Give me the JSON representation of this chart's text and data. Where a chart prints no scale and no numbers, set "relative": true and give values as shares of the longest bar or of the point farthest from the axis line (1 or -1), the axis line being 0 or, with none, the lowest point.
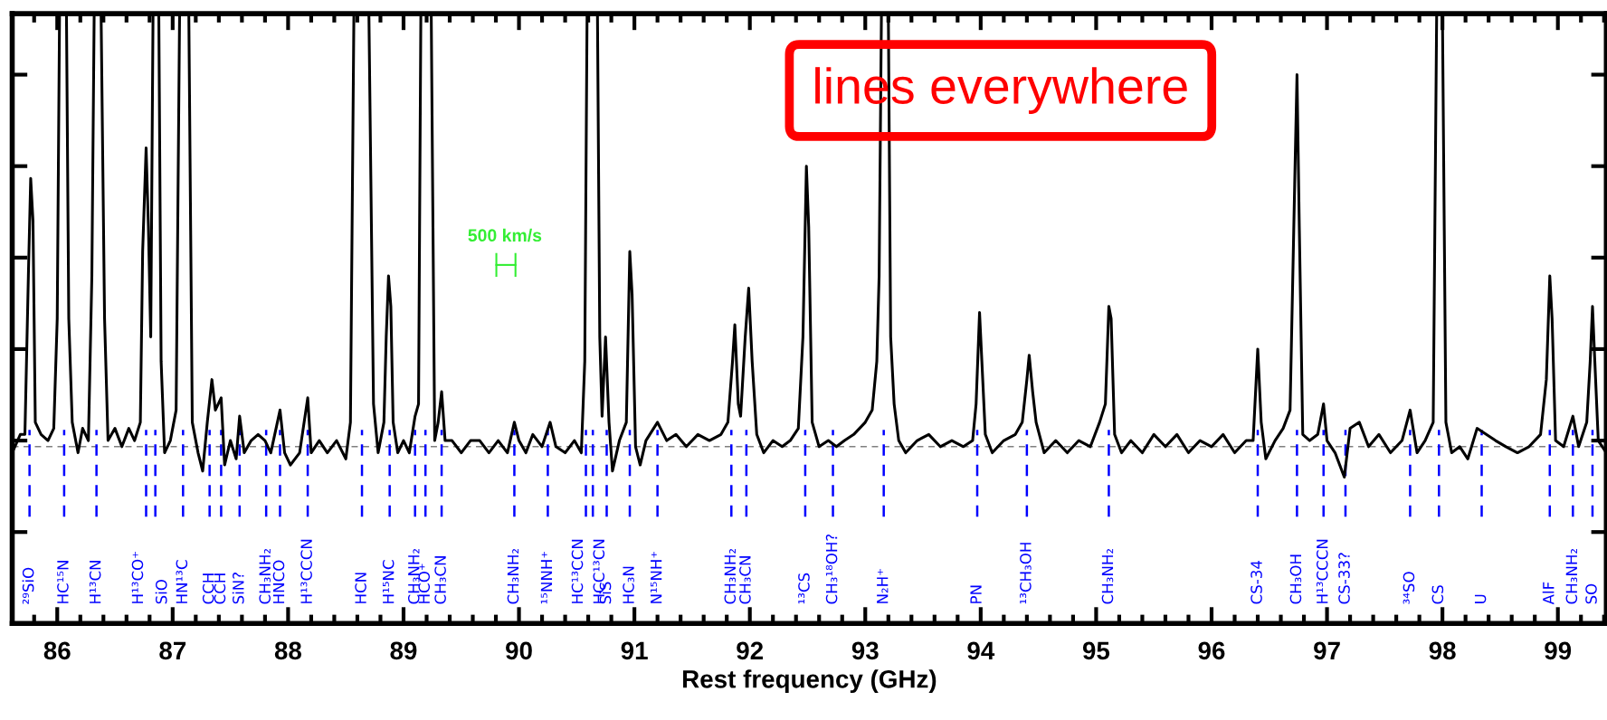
{
  "chart_data": {
    "type": "line",
    "relative": true,
    "xlabel": "Rest frequency (GHz)",
    "xlim": [
      85.61,
      99.42
    ],
    "xticks": [
      86,
      87,
      88,
      89,
      90,
      91,
      92,
      93,
      94,
      95,
      96,
      97,
      98,
      99
    ],
    "grid": false,
    "legend": false,
    "tick_labels": "x",
    "annotations": [
      "lines everywhere",
      "500 km/s"
    ],
    "series": [
      {
        "color": "#000000",
        "x": [
          85.61,
          85.68,
          85.72,
          85.75,
          85.77,
          85.79,
          85.81,
          85.86,
          85.92,
          85.97,
          86.0,
          86.02,
          86.08,
          86.1,
          86.13,
          86.18,
          86.22,
          86.27,
          86.3,
          86.32,
          86.38,
          86.41,
          86.44,
          86.5,
          86.56,
          86.62,
          86.67,
          86.72,
          86.74,
          86.77,
          86.79,
          86.81,
          86.83,
          86.88,
          86.9,
          86.93,
          86.98,
          87.03,
          87.06,
          87.14,
          87.17,
          87.22,
          87.26,
          87.3,
          87.34,
          87.37,
          87.42,
          87.45,
          87.5,
          87.55,
          87.58,
          87.62,
          87.68,
          87.74,
          87.8,
          87.85,
          87.93,
          87.97,
          88.02,
          88.1,
          88.17,
          88.2,
          88.27,
          88.34,
          88.42,
          88.5,
          88.54,
          88.57,
          88.7,
          88.74,
          88.78,
          88.83,
          88.85,
          88.87,
          88.89,
          88.91,
          88.95,
          89.0,
          89.05,
          89.1,
          89.13,
          89.15,
          89.24,
          89.27,
          89.3,
          89.33,
          89.36,
          89.42,
          89.5,
          89.58,
          89.66,
          89.74,
          89.82,
          89.9,
          89.96,
          90.0,
          90.06,
          90.12,
          90.2,
          90.27,
          90.32,
          90.4,
          90.48,
          90.54,
          90.57,
          90.59,
          90.68,
          90.7,
          90.72,
          90.75,
          90.78,
          90.81,
          90.87,
          90.93,
          90.96,
          90.98,
          91.01,
          91.05,
          91.1,
          91.2,
          91.28,
          91.36,
          91.45,
          91.55,
          91.65,
          91.75,
          91.81,
          91.85,
          91.87,
          91.9,
          91.92,
          91.96,
          91.99,
          92.02,
          92.06,
          92.12,
          92.2,
          92.28,
          92.35,
          92.42,
          92.46,
          92.49,
          92.51,
          92.54,
          92.6,
          92.68,
          92.75,
          92.82,
          92.9,
          93.0,
          93.06,
          93.1,
          93.12,
          93.14,
          93.2,
          93.22,
          93.25,
          93.29,
          93.35,
          93.45,
          93.55,
          93.65,
          93.75,
          93.85,
          93.93,
          93.96,
          93.99,
          94.01,
          94.04,
          94.1,
          94.2,
          94.3,
          94.36,
          94.4,
          94.42,
          94.45,
          94.48,
          94.55,
          94.65,
          94.75,
          94.85,
          94.95,
          95.03,
          95.08,
          95.11,
          95.13,
          95.16,
          95.22,
          95.3,
          95.4,
          95.5,
          95.6,
          95.7,
          95.8,
          95.9,
          96.0,
          96.1,
          96.2,
          96.3,
          96.36,
          96.4,
          96.43,
          96.47,
          96.55,
          96.62,
          96.68,
          96.72,
          96.74,
          96.76,
          96.79,
          96.85,
          96.92,
          96.97,
          97.0,
          97.07,
          97.15,
          97.2,
          97.28,
          97.36,
          97.45,
          97.55,
          97.65,
          97.72,
          97.78,
          97.85,
          97.92,
          97.95,
          98.0,
          98.03,
          98.08,
          98.15,
          98.22,
          98.3,
          98.38,
          98.46,
          98.55,
          98.65,
          98.75,
          98.85,
          98.9,
          98.93,
          98.95,
          98.98,
          99.05,
          99.13,
          99.18,
          99.25,
          99.28,
          99.3,
          99.32,
          99.35,
          99.42
        ],
        "values": [
          0.28,
          0.31,
          0.31,
          0.57,
          0.73,
          0.66,
          0.33,
          0.31,
          0.3,
          0.32,
          0.5,
          1,
          1,
          0.5,
          0.33,
          0.28,
          0.32,
          0.3,
          0.57,
          1,
          1,
          0.5,
          0.3,
          0.32,
          0.29,
          0.32,
          0.3,
          0.33,
          0.61,
          0.78,
          0.65,
          0.47,
          1,
          1,
          0.43,
          0.28,
          0.3,
          0.35,
          1,
          1,
          0.33,
          0.28,
          0.25,
          0.33,
          0.4,
          0.35,
          0.37,
          0.26,
          0.3,
          0.27,
          0.34,
          0.28,
          0.3,
          0.31,
          0.3,
          0.28,
          0.35,
          0.28,
          0.26,
          0.28,
          0.37,
          0.28,
          0.3,
          0.28,
          0.3,
          0.27,
          0.33,
          1,
          1,
          0.36,
          0.28,
          0.33,
          0.47,
          0.57,
          0.52,
          0.33,
          0.28,
          0.3,
          0.28,
          0.34,
          0.36,
          1,
          1,
          0.3,
          0.33,
          0.38,
          0.3,
          0.3,
          0.28,
          0.3,
          0.3,
          0.28,
          0.3,
          0.28,
          0.33,
          0.3,
          0.28,
          0.31,
          0.29,
          0.33,
          0.29,
          0.28,
          0.3,
          0.28,
          0.43,
          1,
          1,
          0.47,
          0.34,
          0.47,
          0.33,
          0.25,
          0.3,
          0.33,
          0.61,
          0.54,
          0.29,
          0.26,
          0.3,
          0.33,
          0.3,
          0.31,
          0.29,
          0.31,
          0.3,
          0.31,
          0.33,
          0.43,
          0.49,
          0.36,
          0.34,
          0.47,
          0.55,
          0.43,
          0.31,
          0.28,
          0.3,
          0.29,
          0.3,
          0.32,
          0.47,
          0.75,
          0.65,
          0.33,
          0.29,
          0.3,
          0.29,
          0.3,
          0.31,
          0.33,
          0.35,
          0.43,
          0.57,
          1,
          1,
          0.47,
          0.36,
          0.3,
          0.28,
          0.3,
          0.31,
          0.29,
          0.3,
          0.29,
          0.3,
          0.36,
          0.51,
          0.43,
          0.31,
          0.28,
          0.3,
          0.31,
          0.33,
          0.4,
          0.44,
          0.38,
          0.33,
          0.28,
          0.3,
          0.28,
          0.3,
          0.29,
          0.33,
          0.36,
          0.52,
          0.5,
          0.31,
          0.28,
          0.3,
          0.28,
          0.31,
          0.29,
          0.31,
          0.28,
          0.3,
          0.29,
          0.31,
          0.28,
          0.3,
          0.3,
          0.45,
          0.33,
          0.27,
          0.3,
          0.32,
          0.35,
          0.72,
          0.9,
          0.65,
          0.31,
          0.3,
          0.31,
          0.36,
          0.3,
          0.28,
          0.24,
          0.32,
          0.33,
          0.29,
          0.31,
          0.28,
          0.3,
          0.35,
          0.28,
          0.3,
          0.33,
          1,
          1,
          0.33,
          0.28,
          0.29,
          0.27,
          0.32,
          0.31,
          0.3,
          0.29,
          0.28,
          0.29,
          0.31,
          0.4,
          0.57,
          0.5,
          0.3,
          0.29,
          0.34,
          0.29,
          0.33,
          0.43,
          0.52,
          0.43,
          0.3,
          0.28
        ]
      }
    ],
    "ref_lines": [
      {
        "axis": "y",
        "value": 0.29,
        "color": "#808080",
        "line_style": "dashed"
      },
      {
        "axis": "x",
        "value": 85.76,
        "label": "²⁹SiO",
        "color": "#0000ff",
        "line_style": "dashed"
      },
      {
        "axis": "x",
        "value": 86.06,
        "label": "HC¹⁵N",
        "color": "#0000ff",
        "line_style": "dashed"
      },
      {
        "axis": "x",
        "value": 86.34,
        "label": "H¹³CN",
        "color": "#0000ff",
        "line_style": "dashed"
      },
      {
        "axis": "x",
        "value": 86.77,
        "label": "H¹³CO⁺",
        "color": "#0000ff",
        "line_style": "dashed"
      },
      {
        "axis": "x",
        "value": 86.85,
        "label": "SiO",
        "color": "#0000ff",
        "line_style": "dashed"
      },
      {
        "axis": "x",
        "value": 87.09,
        "label": "HN¹³C",
        "color": "#0000ff",
        "line_style": "dashed"
      },
      {
        "axis": "x",
        "value": 87.32,
        "label": "CCH",
        "color": "#0000ff",
        "line_style": "dashed"
      },
      {
        "axis": "x",
        "value": 87.42,
        "label": "CCH",
        "color": "#0000ff",
        "line_style": "dashed"
      },
      {
        "axis": "x",
        "value": 87.58,
        "label": "SiN?",
        "color": "#0000ff",
        "line_style": "dashed"
      },
      {
        "axis": "x",
        "value": 87.81,
        "label": "CH₃NH₂",
        "color": "#0000ff",
        "line_style": "dashed"
      },
      {
        "axis": "x",
        "value": 87.93,
        "label": "HNCO",
        "color": "#0000ff",
        "line_style": "dashed"
      },
      {
        "axis": "x",
        "value": 88.17,
        "label": "H¹³CCCN",
        "color": "#0000ff",
        "line_style": "dashed"
      },
      {
        "axis": "x",
        "value": 88.64,
        "label": "HCN",
        "color": "#0000ff",
        "line_style": "dashed"
      },
      {
        "axis": "x",
        "value": 88.88,
        "label": "H¹⁵NC",
        "color": "#0000ff",
        "line_style": "dashed"
      },
      {
        "axis": "x",
        "value": 89.1,
        "label": "CH₃NH₂",
        "color": "#0000ff",
        "line_style": "dashed"
      },
      {
        "axis": "x",
        "value": 89.19,
        "label": "HCO⁺",
        "color": "#0000ff",
        "line_style": "dashed"
      },
      {
        "axis": "x",
        "value": 89.33,
        "label": "CH₃CN",
        "color": "#0000ff",
        "line_style": "dashed"
      },
      {
        "axis": "x",
        "value": 89.96,
        "label": "CH₃NH₂",
        "color": "#0000ff",
        "line_style": "dashed"
      },
      {
        "axis": "x",
        "value": 90.25,
        "label": "¹⁵NNH⁺",
        "color": "#0000ff",
        "line_style": "dashed"
      },
      {
        "axis": "x",
        "value": 90.58,
        "label": "HC¹³CCN",
        "color": "#0000ff",
        "line_style": "dashed"
      },
      {
        "axis": "x",
        "value": 90.64,
        "label": "HCC¹³CN",
        "color": "#0000ff",
        "line_style": "dashed"
      },
      {
        "axis": "x",
        "value": 90.76,
        "label": "SiS",
        "color": "#0000ff",
        "line_style": "dashed"
      },
      {
        "axis": "x",
        "value": 90.96,
        "label": "HC₃N",
        "color": "#0000ff",
        "line_style": "dashed"
      },
      {
        "axis": "x",
        "value": 91.2,
        "label": "N¹⁵NH⁺",
        "color": "#0000ff",
        "line_style": "dashed"
      },
      {
        "axis": "x",
        "value": 91.84,
        "label": "CH₃NH₂",
        "color": "#0000ff",
        "line_style": "dashed"
      },
      {
        "axis": "x",
        "value": 91.97,
        "label": "CH₃CN",
        "color": "#0000ff",
        "line_style": "dashed"
      },
      {
        "axis": "x",
        "value": 92.48,
        "label": "¹³CS",
        "color": "#0000ff",
        "line_style": "dashed"
      },
      {
        "axis": "x",
        "value": 92.72,
        "label": "CH₃¹⁸OH?",
        "color": "#0000ff",
        "line_style": "dashed"
      },
      {
        "axis": "x",
        "value": 93.16,
        "label": "N₂H⁺",
        "color": "#0000ff",
        "line_style": "dashed"
      },
      {
        "axis": "x",
        "value": 93.97,
        "label": "PN",
        "color": "#0000ff",
        "line_style": "dashed"
      },
      {
        "axis": "x",
        "value": 94.4,
        "label": "¹³CH₃OH",
        "color": "#0000ff",
        "line_style": "dashed"
      },
      {
        "axis": "x",
        "value": 95.11,
        "label": "CH₃NH₂",
        "color": "#0000ff",
        "line_style": "dashed"
      },
      {
        "axis": "x",
        "value": 96.4,
        "label": "CS-34",
        "color": "#0000ff",
        "line_style": "dashed"
      },
      {
        "axis": "x",
        "value": 96.74,
        "label": "CH₃OH",
        "color": "#0000ff",
        "line_style": "dashed"
      },
      {
        "axis": "x",
        "value": 96.97,
        "label": "H¹³CCCN",
        "color": "#0000ff",
        "line_style": "dashed"
      },
      {
        "axis": "x",
        "value": 97.16,
        "label": "CS-33?",
        "color": "#0000ff",
        "line_style": "dashed"
      },
      {
        "axis": "x",
        "value": 97.72,
        "label": "³⁴SO",
        "color": "#0000ff",
        "line_style": "dashed"
      },
      {
        "axis": "x",
        "value": 97.97,
        "label": "CS",
        "color": "#0000ff",
        "line_style": "dashed"
      },
      {
        "axis": "x",
        "value": 98.34,
        "label": "U",
        "color": "#0000ff",
        "line_style": "dashed"
      },
      {
        "axis": "x",
        "value": 98.93,
        "label": "AlF",
        "color": "#0000ff",
        "line_style": "dashed"
      },
      {
        "axis": "x",
        "value": 99.13,
        "label": "CH₃NH₂",
        "color": "#0000ff",
        "line_style": "dashed"
      },
      {
        "axis": "x",
        "value": 99.3,
        "label": "SO",
        "color": "#0000ff",
        "line_style": "dashed"
      }
    ]
  }
}
